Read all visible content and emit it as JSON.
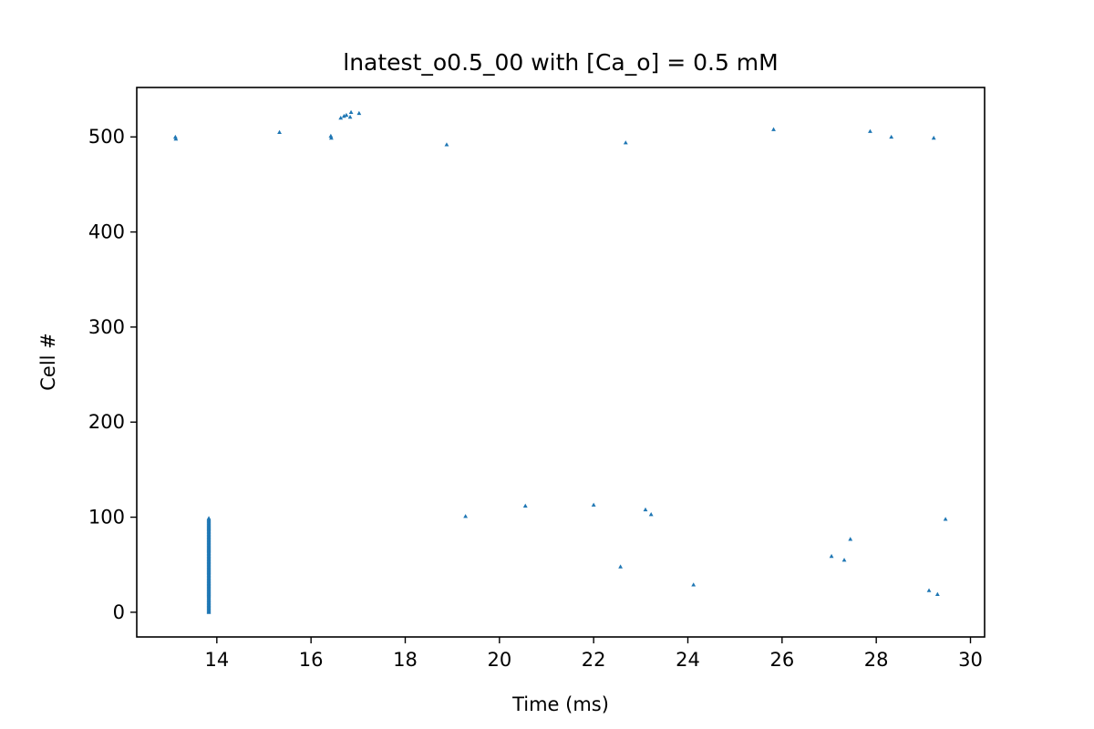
{
  "chart_data": {
    "type": "scatter",
    "title": "lnatest_o0.5_00 with [Ca_o] = 0.5 mM",
    "xlabel": "Time (ms)",
    "ylabel": "Cell #",
    "xlim": [
      12.3,
      30.3
    ],
    "ylim": [
      -26,
      552
    ],
    "xticks": [
      14,
      16,
      18,
      20,
      22,
      24,
      26,
      28,
      30
    ],
    "yticks": [
      0,
      100,
      200,
      300,
      400,
      500
    ],
    "grid": false,
    "marker": "triangle",
    "color": "#1f77b4",
    "spike_column": {
      "x": 13.83,
      "y_from": 0,
      "y_to": 99,
      "step": 1
    },
    "points": [
      {
        "x": 13.12,
        "y": 500
      },
      {
        "x": 13.13,
        "y": 498
      },
      {
        "x": 15.33,
        "y": 505
      },
      {
        "x": 16.42,
        "y": 501
      },
      {
        "x": 16.43,
        "y": 499
      },
      {
        "x": 16.63,
        "y": 520
      },
      {
        "x": 16.7,
        "y": 522
      },
      {
        "x": 16.75,
        "y": 523
      },
      {
        "x": 16.83,
        "y": 521
      },
      {
        "x": 16.85,
        "y": 526
      },
      {
        "x": 17.02,
        "y": 525
      },
      {
        "x": 18.88,
        "y": 492
      },
      {
        "x": 22.68,
        "y": 494
      },
      {
        "x": 25.82,
        "y": 508
      },
      {
        "x": 27.87,
        "y": 506
      },
      {
        "x": 28.32,
        "y": 500
      },
      {
        "x": 29.22,
        "y": 499
      },
      {
        "x": 19.28,
        "y": 101
      },
      {
        "x": 20.55,
        "y": 112
      },
      {
        "x": 22.0,
        "y": 113
      },
      {
        "x": 23.1,
        "y": 108
      },
      {
        "x": 23.22,
        "y": 103
      },
      {
        "x": 22.57,
        "y": 48
      },
      {
        "x": 24.12,
        "y": 29
      },
      {
        "x": 27.05,
        "y": 59
      },
      {
        "x": 27.32,
        "y": 55
      },
      {
        "x": 27.45,
        "y": 77
      },
      {
        "x": 29.12,
        "y": 23
      },
      {
        "x": 29.3,
        "y": 19
      },
      {
        "x": 29.47,
        "y": 98
      }
    ]
  }
}
